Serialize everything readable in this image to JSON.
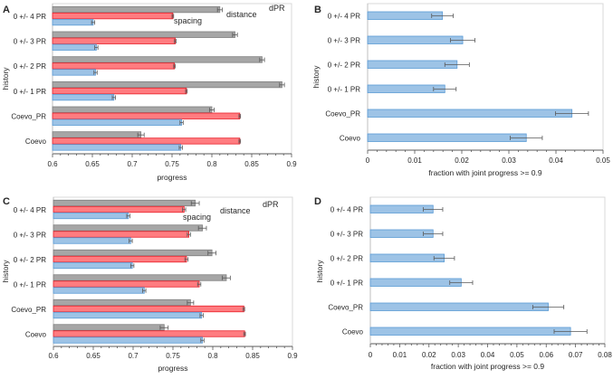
{
  "chart_data": [
    {
      "panel": "A",
      "type": "bar",
      "orientation": "horizontal",
      "categories": [
        "0 +/- 4 PR",
        "0 +/- 3 PR",
        "0 +/- 2 PR",
        "0 +/- 1 PR",
        "Coevo_PR",
        "Coevo"
      ],
      "series": [
        {
          "name": "dPR",
          "color": "#a6a6a6",
          "stroke": "#7f7f7f",
          "values": [
            0.81,
            0.829,
            0.863,
            0.888,
            0.8,
            0.711
          ],
          "errors": [
            0.003,
            0.003,
            0.003,
            0.003,
            0.003,
            0.004
          ]
        },
        {
          "name": "distance",
          "color": "#ff7c80",
          "stroke": "#e8202a",
          "values": [
            0.751,
            0.754,
            0.753,
            0.768,
            0.835,
            0.835
          ],
          "errors": [
            0.001,
            0.001,
            0.001,
            0.001,
            0.001,
            0.001
          ]
        },
        {
          "name": "spacing",
          "color": "#9dc3e6",
          "stroke": "#5b9bd5",
          "values": [
            0.651,
            0.655,
            0.654,
            0.677,
            0.762,
            0.761
          ],
          "errors": [
            0.002,
            0.002,
            0.002,
            0.002,
            0.002,
            0.002
          ]
        }
      ],
      "xlabel": "progress",
      "ylabel": "history",
      "xlim": [
        0.6,
        0.9
      ],
      "xticks": [
        "0.6",
        "0.65",
        "0.7",
        "0.75",
        "0.8",
        "0.85",
        "0.9"
      ],
      "legend_placement": "inline-top-right"
    },
    {
      "panel": "B",
      "type": "bar",
      "orientation": "horizontal",
      "categories": [
        "0 +/- 4 PR",
        "0 +/- 3 PR",
        "0 +/- 2 PR",
        "0 +/- 1 PR",
        "Coevo_PR",
        "Coevo"
      ],
      "series": [
        {
          "name": "fraction",
          "color": "#9dc3e6",
          "stroke": "#5b9bd5",
          "values": [
            0.0159,
            0.0202,
            0.019,
            0.0164,
            0.0434,
            0.0337
          ],
          "errors": [
            0.0023,
            0.0026,
            0.0026,
            0.0024,
            0.0035,
            0.0034
          ]
        }
      ],
      "xlabel": "fraction with joint progress >= 0.9",
      "ylabel": "history",
      "xlim": [
        0,
        0.05
      ],
      "xticks": [
        "0",
        "0.01",
        "0.02",
        "0.03",
        "0.04",
        "0.05"
      ]
    },
    {
      "panel": "C",
      "type": "bar",
      "orientation": "horizontal",
      "categories": [
        "0 +/- 4 PR",
        "0 +/- 3 PR",
        "0 +/- 2 PR",
        "0 +/- 1 PR",
        "Coevo_PR",
        "Coevo"
      ],
      "series": [
        {
          "name": "dPR",
          "color": "#a6a6a6",
          "stroke": "#7f7f7f",
          "values": [
            0.778,
            0.787,
            0.799,
            0.817,
            0.772,
            0.739
          ],
          "errors": [
            0.005,
            0.005,
            0.005,
            0.005,
            0.004,
            0.005
          ]
        },
        {
          "name": "distance",
          "color": "#ff7c80",
          "stroke": "#e8202a",
          "values": [
            0.764,
            0.77,
            0.767,
            0.783,
            0.839,
            0.84
          ],
          "errors": [
            0.002,
            0.002,
            0.002,
            0.002,
            0.001,
            0.001
          ]
        },
        {
          "name": "spacing",
          "color": "#9dc3e6",
          "stroke": "#5b9bd5",
          "values": [
            0.694,
            0.697,
            0.699,
            0.714,
            0.786,
            0.787
          ],
          "errors": [
            0.002,
            0.002,
            0.002,
            0.002,
            0.002,
            0.002
          ]
        }
      ],
      "xlabel": "progress",
      "ylabel": "history",
      "xlim": [
        0.6,
        0.9
      ],
      "xticks": [
        "0.6",
        "0.65",
        "0.7",
        "0.75",
        "0.8",
        "0.85",
        "0.9"
      ],
      "legend_placement": "inline-top-right"
    },
    {
      "panel": "D",
      "type": "bar",
      "orientation": "horizontal",
      "categories": [
        "0 +/- 4 PR",
        "0 +/- 3 PR",
        "0 +/- 2 PR",
        "0 +/- 1 PR",
        "Coevo_PR",
        "Coevo"
      ],
      "series": [
        {
          "name": "fraction",
          "color": "#9dc3e6",
          "stroke": "#5b9bd5",
          "values": [
            0.0214,
            0.0214,
            0.0252,
            0.031,
            0.0607,
            0.0683
          ],
          "errors": [
            0.0033,
            0.0033,
            0.0035,
            0.0039,
            0.0053,
            0.0056
          ]
        }
      ],
      "xlabel": "fraction with joint progress >= 0.9",
      "ylabel": "history",
      "xlim": [
        0,
        0.08
      ],
      "xticks": [
        "0",
        "0.01",
        "0.02",
        "0.03",
        "0.04",
        "0.05",
        "0.06",
        "0.07",
        "0.08"
      ]
    }
  ]
}
